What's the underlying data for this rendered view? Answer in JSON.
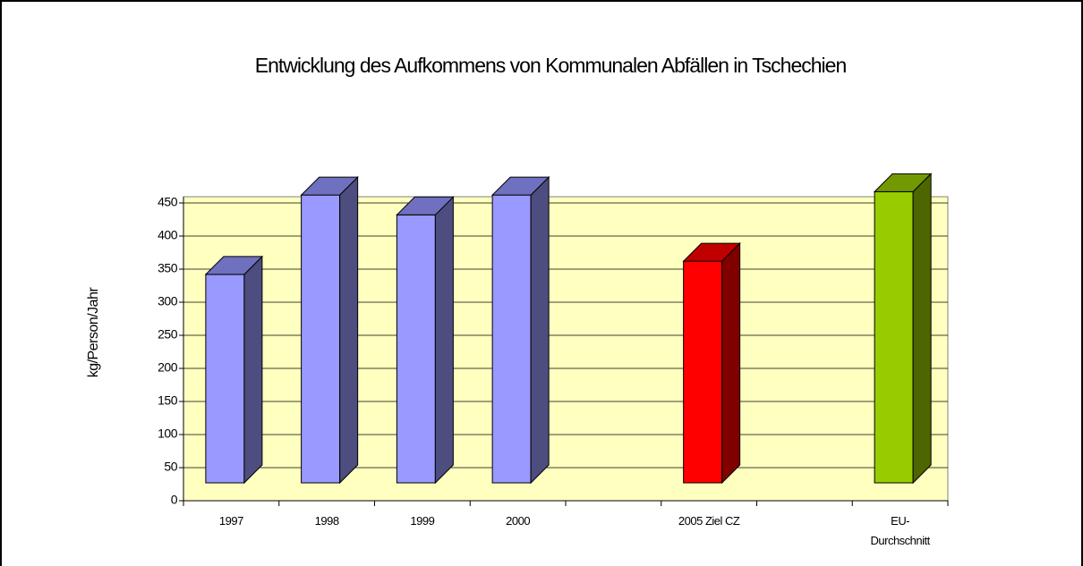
{
  "chart_data": {
    "type": "bar3d",
    "title": "Entwicklung des Aufkommens von Kommunalen Abfällen in Tschechien",
    "y_label": "kg/Person/Jahr",
    "categories": [
      "1997",
      "1998",
      "1999",
      "2000",
      null,
      "2005 Ziel CZ",
      null,
      "EU-Durchschnitt"
    ],
    "values": [
      315,
      435,
      405,
      435,
      null,
      335,
      null,
      440
    ],
    "colors": [
      "#9999ff",
      "#9999ff",
      "#9999ff",
      "#9999ff",
      null,
      "#ff0000",
      null,
      "#99cc00"
    ],
    "side_colors": [
      "#4d4d80",
      "#4d4d80",
      "#4d4d80",
      "#4d4d80",
      null,
      "#800000",
      null,
      "#4d6600"
    ],
    "top_colors": [
      "#7070c0",
      "#7070c0",
      "#7070c0",
      "#7070c0",
      null,
      "#c00000",
      null,
      "#739900"
    ],
    "ylim": [
      0,
      450
    ],
    "yticks": [
      0,
      50,
      100,
      150,
      200,
      250,
      300,
      350,
      400,
      450
    ],
    "grid": true,
    "wall_color": "#ffffc0"
  }
}
